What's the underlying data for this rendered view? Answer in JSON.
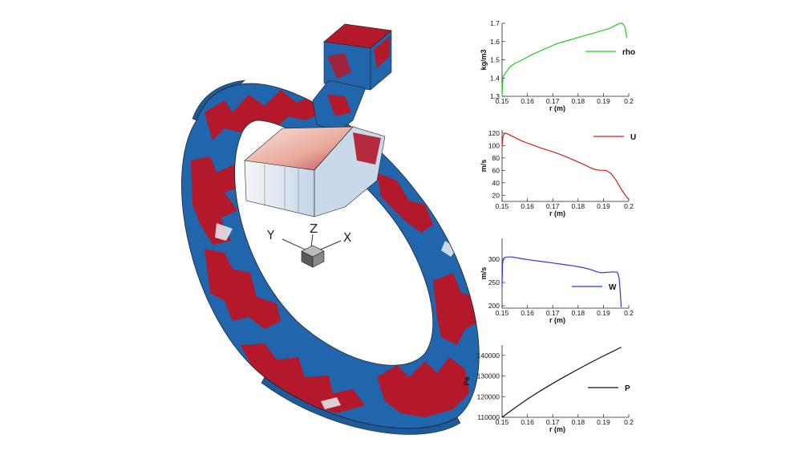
{
  "triad": {
    "x_label": "X",
    "y_label": "Y",
    "z_label": "Z"
  },
  "colors": {
    "red": "#b3182b",
    "blue": "#2166ac",
    "white": "#f7f7f7"
  },
  "chart_data": [
    {
      "type": "line",
      "name": "rho",
      "legend": "rho",
      "xlabel": "r (m)",
      "ylabel": "kg/m3",
      "xlim": [
        0.15,
        0.2
      ],
      "ylim": [
        1.3,
        1.7
      ],
      "xticks": [
        "0.15",
        "0.16",
        "0.17",
        "0.18",
        "0.19",
        "0.2"
      ],
      "yticks": [
        "1.3",
        "1.4",
        "1.5",
        "1.6",
        "1.7"
      ],
      "ytick_values": [
        1.3,
        1.4,
        1.5,
        1.6,
        1.7
      ],
      "color": "#22cc22",
      "legend_position": "right",
      "x": [
        0.15,
        0.1502,
        0.1505,
        0.151,
        0.152,
        0.153,
        0.155,
        0.158,
        0.162,
        0.167,
        0.172,
        0.177,
        0.182,
        0.187,
        0.192,
        0.195,
        0.1965,
        0.1975,
        0.1985,
        0.1992
      ],
      "y": [
        1.3,
        1.37,
        1.41,
        1.42,
        1.44,
        1.46,
        1.48,
        1.5,
        1.53,
        1.56,
        1.59,
        1.61,
        1.63,
        1.65,
        1.67,
        1.69,
        1.7,
        1.7,
        1.68,
        1.62
      ]
    },
    {
      "type": "line",
      "name": "U",
      "legend": "U",
      "xlabel": "r (m)",
      "ylabel": "m/s",
      "xlim": [
        0.15,
        0.2
      ],
      "ylim": [
        10,
        125
      ],
      "xticks": [
        "0.15",
        "0.16",
        "0.17",
        "0.18",
        "0.19",
        "0.2"
      ],
      "yticks": [
        "20",
        "40",
        "60",
        "80",
        "100",
        "120"
      ],
      "ytick_values": [
        20,
        40,
        60,
        80,
        100,
        120
      ],
      "color": "#cc2222",
      "legend_position": "top-right",
      "x": [
        0.15,
        0.1503,
        0.1507,
        0.1512,
        0.152,
        0.154,
        0.158,
        0.162,
        0.166,
        0.17,
        0.174,
        0.178,
        0.182,
        0.185,
        0.187,
        0.189,
        0.191,
        0.193,
        0.195,
        0.197,
        0.199,
        0.2
      ],
      "y": [
        98,
        112,
        118,
        120,
        119,
        115,
        107,
        101,
        95,
        90,
        84,
        77,
        70,
        64,
        61,
        60,
        60,
        55,
        44,
        30,
        18,
        13
      ]
    },
    {
      "type": "line",
      "name": "W",
      "legend": "W",
      "xlabel": "r (m)",
      "ylabel": "m/s",
      "xlim": [
        0.15,
        0.2
      ],
      "ylim": [
        195,
        345
      ],
      "xticks": [
        "0.15",
        "0.16",
        "0.17",
        "0.18",
        "0.19",
        "0.2"
      ],
      "yticks": [
        "200",
        "250",
        "300"
      ],
      "ytick_values": [
        200,
        250,
        300
      ],
      "color": "#3333dd",
      "legend_position": "right",
      "x": [
        0.15,
        0.1502,
        0.1505,
        0.151,
        0.152,
        0.154,
        0.158,
        0.162,
        0.166,
        0.17,
        0.174,
        0.178,
        0.182,
        0.185,
        0.187,
        0.189,
        0.192,
        0.194,
        0.1955,
        0.1962,
        0.1967,
        0.197
      ],
      "y": [
        240,
        290,
        301,
        304,
        305,
        305,
        301,
        298,
        295,
        292,
        289,
        286,
        282,
        278,
        274,
        271,
        272,
        273,
        272,
        260,
        225,
        197
      ]
    },
    {
      "type": "line",
      "name": "P",
      "legend": "P",
      "xlabel": "r (m)",
      "ylabel": "Pa",
      "xlim": [
        0.15,
        0.2
      ],
      "ylim": [
        110000,
        145000
      ],
      "xticks": [
        "0.15",
        "0.16",
        "0.17",
        "0.18",
        "0.19",
        "0.2"
      ],
      "yticks": [
        "110000",
        "120000",
        "130000",
        "140000"
      ],
      "ytick_values": [
        110000,
        120000,
        130000,
        140000
      ],
      "color": "#111111",
      "legend_position": "right",
      "x": [
        0.15,
        0.155,
        0.16,
        0.165,
        0.17,
        0.175,
        0.18,
        0.185,
        0.19,
        0.195,
        0.197
      ],
      "y": [
        110000,
        114500,
        118800,
        122700,
        126400,
        129900,
        133300,
        136600,
        139700,
        142700,
        144000
      ]
    }
  ]
}
